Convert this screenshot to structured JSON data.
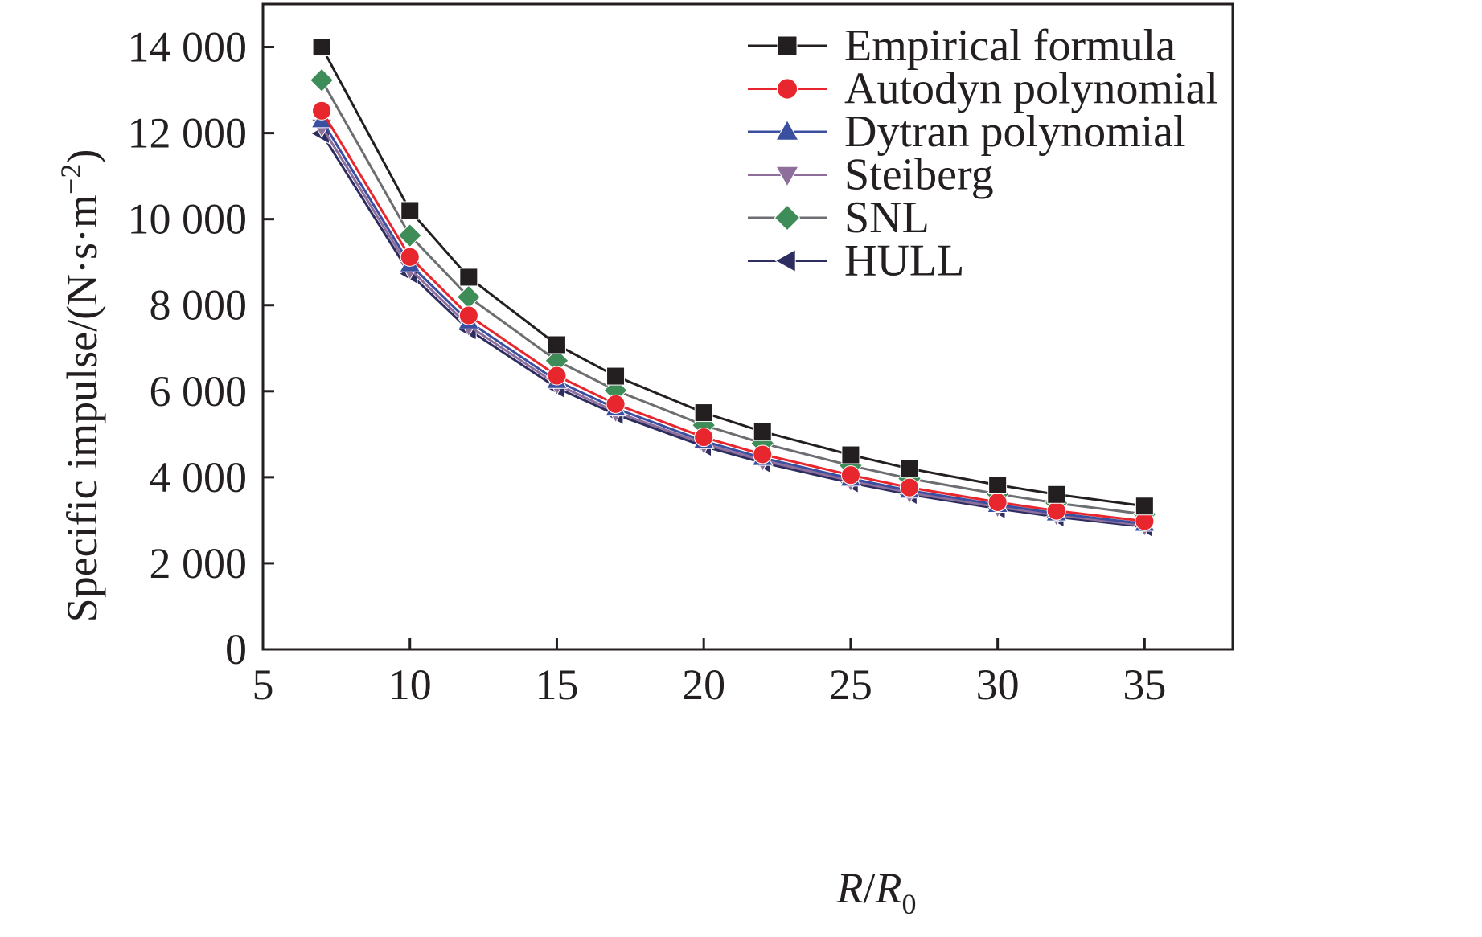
{
  "chart_data": {
    "type": "line",
    "xlabel": "R/R0",
    "xlabel_parts": {
      "main": "R",
      "slash": "/",
      "main2": "R",
      "sub": "0"
    },
    "ylabel": "Specific impulse/(N·s·m−2)",
    "ylabel_parts": {
      "main": "Specific impulse/(N·s·m",
      "sup": "−2",
      "close": ")"
    },
    "xlim": [
      5,
      38
    ],
    "ylim": [
      0,
      15000
    ],
    "xticks": [
      5,
      10,
      15,
      20,
      25,
      30,
      35
    ],
    "xtick_labels": [
      "5",
      "10",
      "15",
      "20",
      "25",
      "30",
      "35"
    ],
    "yticks": [
      0,
      2000,
      4000,
      6000,
      8000,
      10000,
      12000,
      14000
    ],
    "ytick_labels": [
      "0",
      "2 000",
      "4 000",
      "6 000",
      "8 000",
      "10 000",
      "12 000",
      "14 000"
    ],
    "grid": false,
    "legend_position": "top-right",
    "x": [
      7,
      10,
      12,
      15,
      17,
      20,
      22,
      25,
      27,
      30,
      32,
      35
    ],
    "series": [
      {
        "name": "Empirical formula",
        "marker": "square",
        "color": "#231f20",
        "line_color": "#231f20",
        "values": [
          14000,
          10200,
          8650,
          7080,
          6350,
          5500,
          5060,
          4520,
          4200,
          3820,
          3600,
          3330
        ]
      },
      {
        "name": "Autodyn polynomial",
        "marker": "circle",
        "color": "#e8262d",
        "line_color": "#e8262d",
        "values": [
          12520,
          9120,
          7760,
          6360,
          5700,
          4930,
          4530,
          4050,
          3760,
          3420,
          3220,
          2980
        ]
      },
      {
        "name": "Dytran polynomial",
        "marker": "triangle-up",
        "color": "#3b4fa0",
        "line_color": "#3b4fa0",
        "values": [
          12300,
          8950,
          7620,
          6240,
          5600,
          4840,
          4450,
          3970,
          3690,
          3360,
          3160,
          2920
        ]
      },
      {
        "name": "Steiberg",
        "marker": "triangle-down",
        "color": "#8e6f9c",
        "line_color": "#8e6f9c",
        "values": [
          12150,
          8840,
          7520,
          6160,
          5520,
          4780,
          4390,
          3920,
          3640,
          3310,
          3120,
          2880
        ]
      },
      {
        "name": "SNL",
        "marker": "diamond",
        "color": "#3e8c57",
        "line_color": "#6d6e71",
        "values": [
          13230,
          9620,
          8190,
          6710,
          6020,
          5210,
          4790,
          4270,
          3970,
          3610,
          3400,
          3140
        ]
      },
      {
        "name": "HULL",
        "marker": "triangle-left",
        "color": "#2e2d5f",
        "line_color": "#2e2d5f",
        "values": [
          11990,
          8730,
          7430,
          6080,
          5460,
          4720,
          4340,
          3870,
          3600,
          3270,
          3080,
          2850
        ]
      }
    ]
  }
}
